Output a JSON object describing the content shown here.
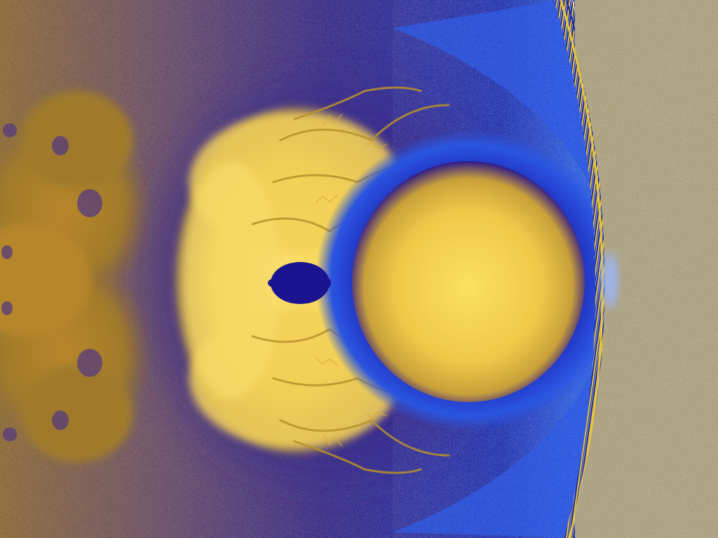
{
  "image": {
    "subject": "fractal-render",
    "palette": {
      "deep_blue": "#1a1490",
      "royal_blue": "#2a3fd0",
      "bright_blue": "#3a6cf0",
      "violet": "#5a4a9a",
      "mauve": "#7a5a6a",
      "bronze": "#a07a2a",
      "gold": "#e8c43a",
      "pale_gold": "#fbe070",
      "sand": "#b8a070"
    }
  }
}
